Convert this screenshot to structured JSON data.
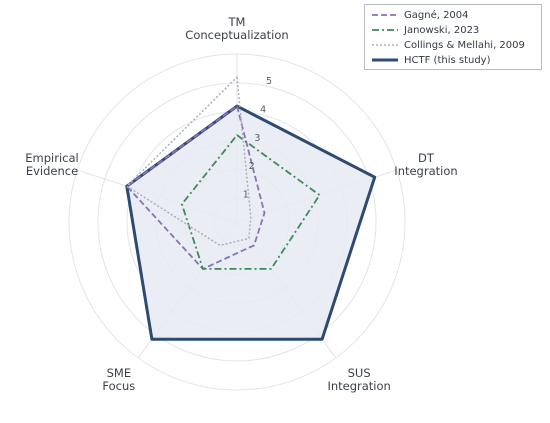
{
  "chart_data": {
    "type": "radar",
    "axes": [
      "TM\nConceptualization",
      "DT\nIntegration",
      "SUS\nIntegration",
      "SME\nFocus",
      "Empirical\nEvidence"
    ],
    "rlim": [
      0,
      5.8
    ],
    "rticks": [
      1,
      2,
      3,
      4,
      5
    ],
    "grid": true,
    "legend_position": "top-right",
    "series": [
      {
        "name": "Gagné, 2004",
        "values": [
          4,
          1,
          1,
          2,
          4
        ],
        "color": "#8a72b8",
        "dash": "6,3",
        "width": 1.8,
        "fill": false
      },
      {
        "name": "Janowski, 2023",
        "values": [
          3,
          3,
          2,
          2,
          2
        ],
        "color": "#3f8a55",
        "dash": "7,3,2,3",
        "width": 1.8,
        "fill": false
      },
      {
        "name": "Collings & Mellahi, 2009",
        "values": [
          5,
          0.5,
          0.7,
          1,
          4
        ],
        "color": "#aab0bb",
        "dash": "2,2",
        "width": 1.5,
        "fill": false
      },
      {
        "name": "HCTF (this study)",
        "values": [
          4,
          5,
          5,
          5,
          4
        ],
        "color": "#2d4a70",
        "dash": "",
        "width": 3,
        "fill": true,
        "fill_color": "#e6eaf2"
      }
    ]
  },
  "legend": {
    "items": [
      {
        "label": "Gagné, 2004"
      },
      {
        "label": "Janowski, 2023"
      },
      {
        "label": "Collings & Mellahi, 2009"
      },
      {
        "label": "HCTF (this study)"
      }
    ]
  }
}
